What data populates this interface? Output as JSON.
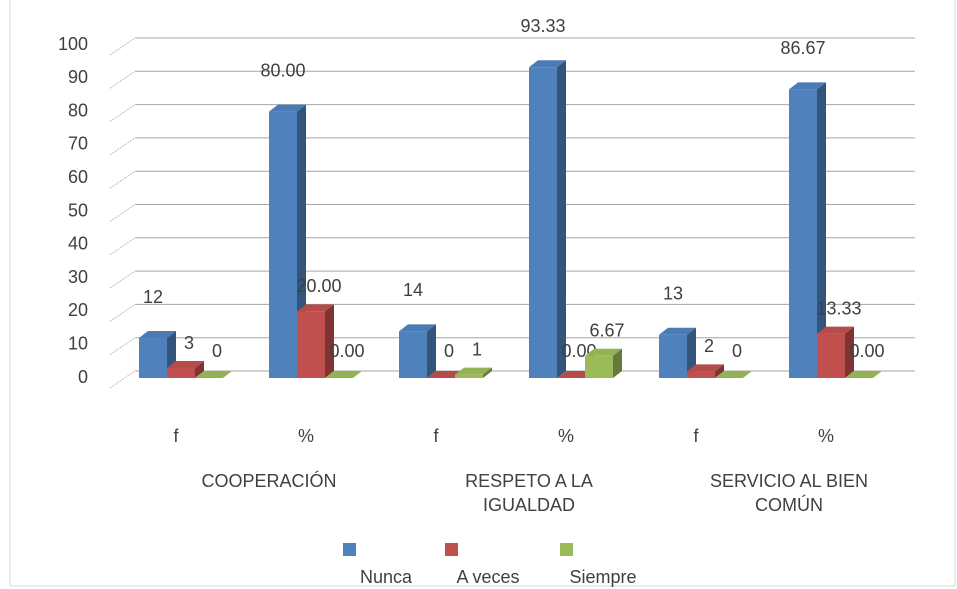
{
  "chart_data": {
    "type": "bar3d",
    "categories": [
      "f",
      "%",
      "f",
      "%",
      "f",
      "%"
    ],
    "groups": [
      "COOPERACIÓN",
      "RESPETO A LA IGUALDAD",
      "SERVICIO AL BIEN COMÚN"
    ],
    "series": [
      {
        "name": "Nunca",
        "color": "#4f81bd",
        "values": [
          12,
          80,
          14,
          93.33,
          13,
          86.67
        ],
        "value_labels": [
          "12",
          "80.00",
          "14",
          "93.33",
          "13",
          "86.67"
        ]
      },
      {
        "name": "A veces",
        "color": "#c0504d",
        "values": [
          3,
          20,
          0,
          0,
          2,
          13.33
        ],
        "value_labels": [
          "3",
          "20.00",
          "0",
          "0.00",
          "2",
          "13.33"
        ]
      },
      {
        "name": "Siempre",
        "color": "#9bbb59",
        "values": [
          0,
          0,
          1,
          6.67,
          0,
          0
        ],
        "value_labels": [
          "0",
          "0.00",
          "1",
          "6.67",
          "0",
          "0.00"
        ]
      }
    ],
    "ylim": [
      0,
      100
    ],
    "yticks": [
      0,
      10,
      20,
      30,
      40,
      50,
      60,
      70,
      80,
      90,
      100
    ],
    "grid": true,
    "legend": "bottom"
  }
}
